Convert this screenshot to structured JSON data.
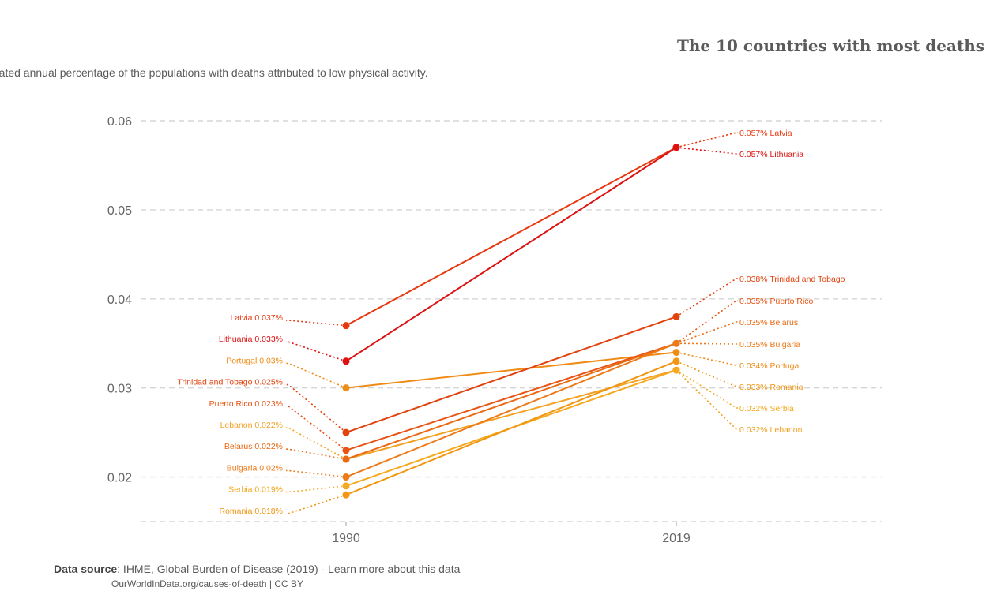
{
  "header": {
    "title": "The 10 countries with most deaths",
    "subtitle": "timated annual percentage of the populations with deaths attributed to low physical activity."
  },
  "footer": {
    "source_label": "Data source",
    "source_text": ": IHME, Global Burden of Disease (2019) - Learn more about this data",
    "origin": "OurWorldInData.org/causes-of-death | CC BY"
  },
  "chart_data": {
    "type": "line",
    "title": "The 10 countries with most deaths",
    "x": [
      "1990",
      "2019"
    ],
    "y_ticks": [
      "0.06",
      "0.05",
      "0.04",
      "0.03",
      "0.02"
    ],
    "ylim": [
      0.015,
      0.06
    ],
    "grid": true,
    "series": [
      {
        "name": "Latvia",
        "values": [
          0.037,
          0.057
        ],
        "labels": [
          "Latvia 0.037%",
          "0.057% Latvia"
        ],
        "color": "#e8380f"
      },
      {
        "name": "Lithuania",
        "values": [
          0.033,
          0.057
        ],
        "labels": [
          "Lithuania 0.033%",
          "0.057% Lithuania"
        ],
        "color": "#dd1111"
      },
      {
        "name": "Portugal",
        "values": [
          0.03,
          0.034
        ],
        "labels": [
          "Portugal 0.03%",
          "0.034% Portugal"
        ],
        "color": "#ef8c17"
      },
      {
        "name": "Trinidad and Tobago",
        "values": [
          0.025,
          0.038
        ],
        "labels": [
          "Trinidad and Tobago 0.025%",
          "0.038% Trinidad and Tobago"
        ],
        "color": "#e2430e"
      },
      {
        "name": "Puerto Rico",
        "values": [
          0.023,
          0.035
        ],
        "labels": [
          "Puerto Rico 0.023%",
          "0.035% Puerto Rico"
        ],
        "color": "#e85413"
      },
      {
        "name": "Lebanon",
        "values": [
          0.022,
          0.032
        ],
        "labels": [
          "Lebanon 0.022%",
          "0.032% Lebanon"
        ],
        "color": "#f3a224"
      },
      {
        "name": "Belarus",
        "values": [
          0.022,
          0.035
        ],
        "labels": [
          "Belarus 0.022%",
          "0.035% Belarus"
        ],
        "color": "#ea6a14"
      },
      {
        "name": "Bulgaria",
        "values": [
          0.02,
          0.035
        ],
        "labels": [
          "Bulgaria 0.02%",
          "0.035% Bulgaria"
        ],
        "color": "#ed7a19"
      },
      {
        "name": "Serbia",
        "values": [
          0.019,
          0.032
        ],
        "labels": [
          "Serbia 0.019%",
          "0.032% Serbia"
        ],
        "color": "#f5a91e"
      },
      {
        "name": "Romania",
        "values": [
          0.018,
          0.033
        ],
        "labels": [
          "Romania 0.018%",
          "0.033% Romania"
        ],
        "color": "#f09612"
      }
    ]
  }
}
